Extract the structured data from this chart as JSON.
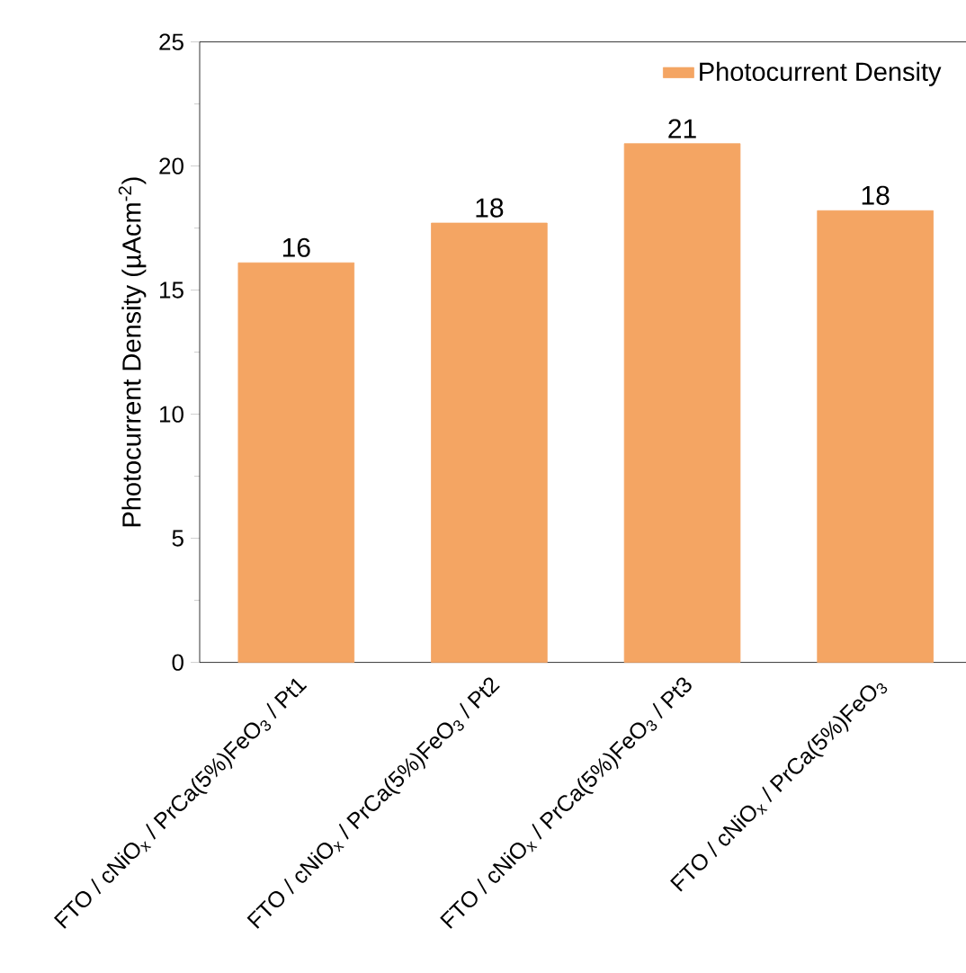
{
  "chart_data": {
    "type": "bar",
    "ylabel": "Photocurrent Density (µAcm$^{-2}$)",
    "categories": [
      "FTO / cNiO$_{x}$ / PrCa(5%)FeO$_{3}$ / Pt1",
      "FTO / cNiO$_{x}$ / PrCa(5%)FeO$_{3}$ / Pt2",
      "FTO / cNiO$_{x}$ / PrCa(5%)FeO$_{3}$ / Pt3",
      "FTO / cNiO$_{x}$ / PrCa(5%)FeO$_{3}$"
    ],
    "series": [
      {
        "name": "Photocurrent Density",
        "color": "#f4a563",
        "values": [
          16.1,
          17.7,
          20.9,
          18.2
        ],
        "value_labels": [
          "16",
          "18",
          "21",
          "18"
        ]
      }
    ],
    "ylim": [
      0,
      25
    ],
    "yticks": [
      0,
      5,
      10,
      15,
      20,
      25
    ],
    "grid": false,
    "legend": "top right"
  }
}
